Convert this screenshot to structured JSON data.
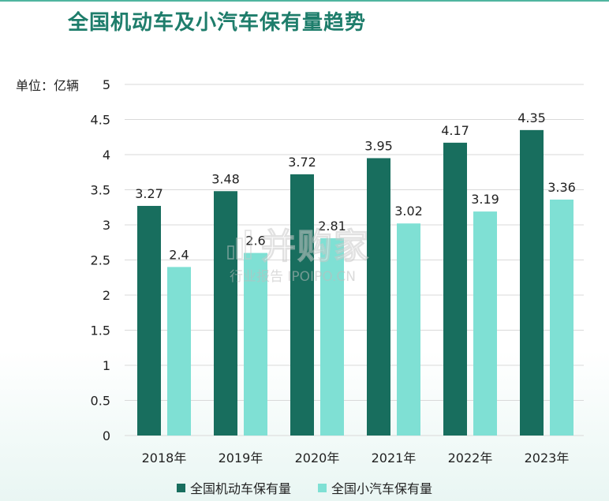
{
  "title": "全国机动车及小汽车保有量趋势",
  "watermark": {
    "main": "并购家",
    "sub": "行业报告 IPOIPO.CN"
  },
  "colors": {
    "series1": "#186e5e",
    "series2": "#7fe0d4",
    "accent": "#1e7d6b"
  },
  "chart_data": {
    "type": "bar",
    "title": "全国机动车及小汽车保有量趋势",
    "ylabel": "单位：亿辆",
    "ylim": [
      0,
      5
    ],
    "yticks": [
      "0",
      "0.5",
      "1",
      "1.5",
      "2",
      "2.5",
      "3",
      "3.5",
      "4",
      "4.5",
      "5"
    ],
    "categories": [
      "2018年",
      "2019年",
      "2020年",
      "2021年",
      "2022年",
      "2023年"
    ],
    "series": [
      {
        "name": "全国机动车保有量",
        "values": [
          3.27,
          3.48,
          3.72,
          3.95,
          4.17,
          4.35
        ],
        "labels": [
          "3.27",
          "3.48",
          "3.72",
          "3.95",
          "4.17",
          "4.35"
        ]
      },
      {
        "name": "全国小汽车保有量",
        "values": [
          2.4,
          2.6,
          2.81,
          3.02,
          3.19,
          3.36
        ],
        "labels": [
          "2.4",
          "2.6",
          "2.81",
          "3.02",
          "3.19",
          "3.36"
        ]
      }
    ],
    "grid": true,
    "legend": "bottom"
  }
}
